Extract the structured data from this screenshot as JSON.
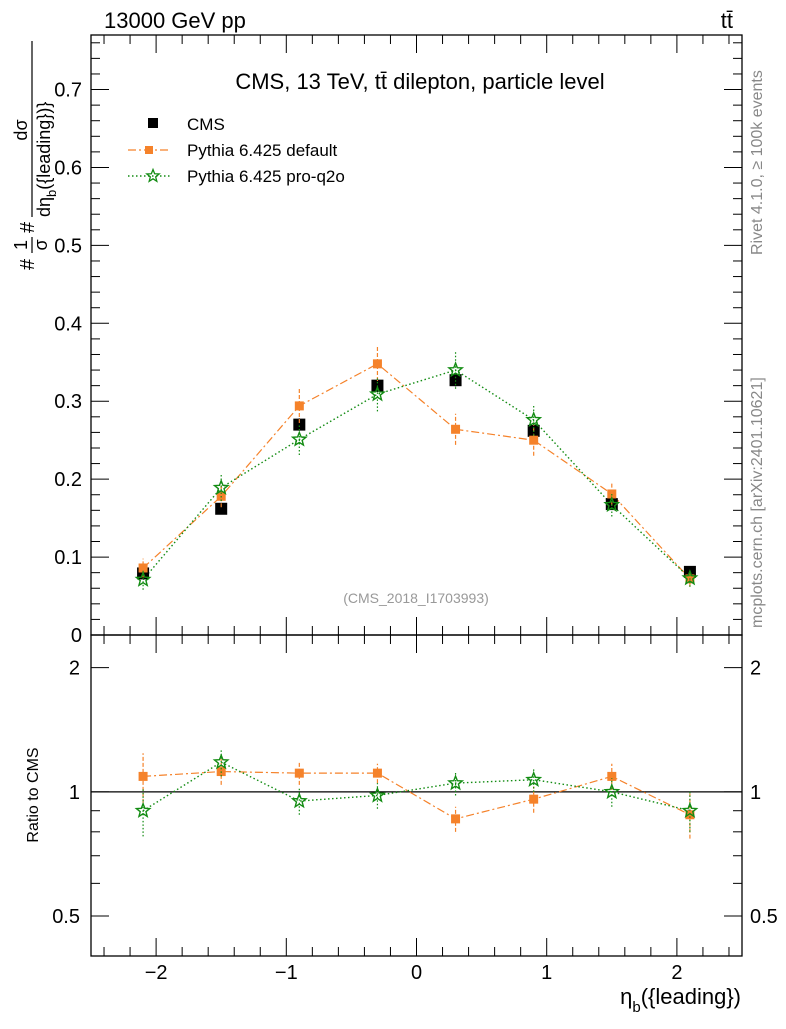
{
  "header": {
    "energy_label": "13000 GeV pp",
    "process_label": "tt̄"
  },
  "side_labels": {
    "rivet": "Rivet 4.1.0, ≥ 100k events",
    "mcplots": "mcplots.cern.ch [arXiv:2401.10621]"
  },
  "colors": {
    "data": "#000000",
    "pythia_default": "#f5822a",
    "pythia_proq2o": "#138c13",
    "reference_line": "#000000",
    "watermark": "#999999"
  },
  "chart_data": [
    {
      "type": "scatter",
      "panel": "main",
      "title": "CMS, 13 TeV, tt̄ dilepton, particle level",
      "ylabel": "#frac{1}{σ}#frac{dσ}{dη_b({leading})}",
      "ylabel_parts": {
        "prefix": "#",
        "frac1_num": "1",
        "frac1_den": "σ",
        "mid": "#",
        "frac2_num": "dσ",
        "frac2_den": "dη",
        "frac2_den_sub": "b",
        "frac2_den_suffix": "({leading})}"
      },
      "watermark": "(CMS_2018_I1703993)",
      "xlim": [
        -2.5,
        2.5
      ],
      "ylim": [
        0,
        0.77
      ],
      "yticks": [
        0,
        0.1,
        0.2,
        0.3,
        0.4,
        0.5,
        0.6,
        0.7
      ],
      "ytick_labels": [
        "0",
        "0.1",
        "0.2",
        "0.3",
        "0.4",
        "0.5",
        "0.6",
        "0.7"
      ],
      "x": [
        -2.1,
        -1.5,
        -0.9,
        -0.3,
        0.3,
        0.9,
        1.5,
        2.1
      ],
      "legend_position": "top-left",
      "series": [
        {
          "name": "CMS",
          "role": "data",
          "marker": "square",
          "values": [
            0.079,
            0.162,
            0.27,
            0.32,
            0.327,
            0.262,
            0.168,
            0.081
          ],
          "errors": [
            0.005,
            0.006,
            0.008,
            0.008,
            0.008,
            0.008,
            0.006,
            0.005
          ]
        },
        {
          "name": "Pythia 6.425 default",
          "role": "pythia_default",
          "marker": "filled-square",
          "line": "dash-dot",
          "values": [
            0.086,
            0.178,
            0.294,
            0.348,
            0.264,
            0.25,
            0.181,
            0.072
          ],
          "errors": [
            0.012,
            0.014,
            0.022,
            0.022,
            0.02,
            0.02,
            0.015,
            0.01
          ]
        },
        {
          "name": "Pythia 6.425 pro-q2o",
          "role": "pythia_proq2o",
          "marker": "open-star",
          "line": "dotted",
          "values": [
            0.071,
            0.189,
            0.251,
            0.309,
            0.34,
            0.276,
            0.167,
            0.073
          ],
          "errors": [
            0.013,
            0.017,
            0.02,
            0.022,
            0.024,
            0.02,
            0.015,
            0.011
          ]
        }
      ]
    },
    {
      "type": "scatter",
      "panel": "ratio",
      "xlabel": "η_b({leading})",
      "xlabel_parts": {
        "eta": "η",
        "sub": "b",
        "rest": "({leading})"
      },
      "ylabel": "Ratio to CMS",
      "xlim": [
        -2.5,
        2.5
      ],
      "ylim": [
        0.4,
        2.4
      ],
      "scale": "log",
      "xticks": [
        -2,
        -1,
        0,
        1,
        2
      ],
      "xtick_labels": [
        "−2",
        "−1",
        "0",
        "1",
        "2"
      ],
      "yticks_labeled": [
        0.5,
        1,
        2
      ],
      "ytick_labels": [
        "0.5",
        "1",
        "2"
      ],
      "reference": 1,
      "x": [
        -2.1,
        -1.5,
        -0.9,
        -0.3,
        0.3,
        0.9,
        1.5,
        2.1
      ],
      "series": [
        {
          "name": "Pythia 6.425 default",
          "role": "pythia_default",
          "values": [
            1.09,
            1.12,
            1.11,
            1.11,
            0.86,
            0.96,
            1.09,
            0.88
          ],
          "errors": [
            0.15,
            0.08,
            0.07,
            0.06,
            0.06,
            0.07,
            0.08,
            0.11
          ]
        },
        {
          "name": "Pythia 6.425 pro-q2o",
          "role": "pythia_proq2o",
          "values": [
            0.9,
            1.18,
            0.95,
            0.98,
            1.05,
            1.07,
            1.0,
            0.9
          ],
          "errors": [
            0.12,
            0.09,
            0.07,
            0.07,
            0.07,
            0.07,
            0.08,
            0.1
          ]
        }
      ]
    }
  ]
}
